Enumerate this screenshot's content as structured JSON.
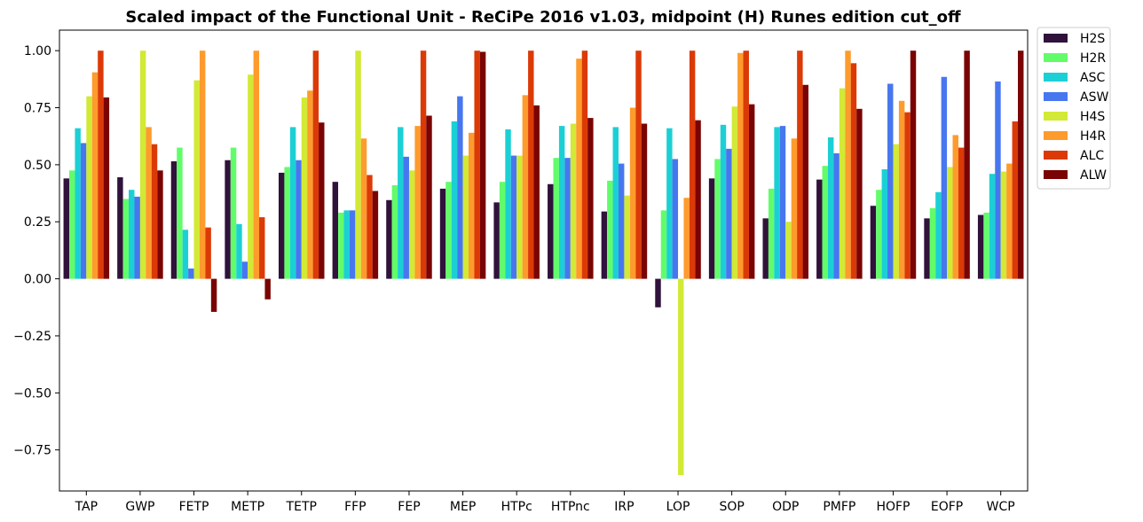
{
  "chart_data": {
    "type": "bar",
    "title": "Scaled impact of the Functional Unit - ReCiPe 2016 v1.03, midpoint (H) Runes edition cut_off",
    "xlabel": "",
    "ylabel": "",
    "ylim": [
      -0.93,
      1.09
    ],
    "yticks": [
      "1.00",
      "0.75",
      "0.50",
      "0.25",
      "0.00",
      "−0.25",
      "−0.50",
      "−0.75"
    ],
    "yticks_values": [
      1.0,
      0.75,
      0.5,
      0.25,
      0.0,
      -0.25,
      -0.5,
      -0.75
    ],
    "grid": false,
    "legend_position": "outside-top-right",
    "categories": [
      "TAP",
      "GWP",
      "FETP",
      "METP",
      "TETP",
      "FFP",
      "FEP",
      "MEP",
      "HTPc",
      "HTPnc",
      "IRP",
      "LOP",
      "SOP",
      "ODP",
      "PMFP",
      "HOFP",
      "EOFP",
      "WCP"
    ],
    "series": [
      {
        "name": "H2S",
        "color": "#30123b",
        "values": [
          0.44,
          0.445,
          0.515,
          0.52,
          0.465,
          0.425,
          0.345,
          0.395,
          0.335,
          0.415,
          0.295,
          -0.125,
          0.44,
          0.265,
          0.435,
          0.32,
          0.265,
          0.28
        ]
      },
      {
        "name": "H2R",
        "color": "#62fc6b",
        "values": [
          0.475,
          0.35,
          0.575,
          0.575,
          0.49,
          0.29,
          0.41,
          0.425,
          0.425,
          0.53,
          0.43,
          0.3,
          0.525,
          0.395,
          0.495,
          0.39,
          0.31,
          0.29
        ]
      },
      {
        "name": "ASC",
        "color": "#1bd0d5",
        "values": [
          0.66,
          0.39,
          0.215,
          0.24,
          0.665,
          0.3,
          0.665,
          0.69,
          0.655,
          0.67,
          0.665,
          0.66,
          0.675,
          0.665,
          0.62,
          0.48,
          0.38,
          0.46
        ]
      },
      {
        "name": "ASW",
        "color": "#4777ef",
        "values": [
          0.595,
          0.36,
          0.045,
          0.075,
          0.52,
          0.3,
          0.535,
          0.8,
          0.54,
          0.53,
          0.505,
          0.525,
          0.57,
          0.67,
          0.55,
          0.855,
          0.885,
          0.865
        ]
      },
      {
        "name": "H4S",
        "color": "#d2e935",
        "values": [
          0.8,
          1.0,
          0.87,
          0.895,
          0.795,
          1.0,
          0.475,
          0.54,
          0.54,
          0.68,
          0.365,
          -0.86,
          0.755,
          0.25,
          0.835,
          0.59,
          0.49,
          0.47
        ]
      },
      {
        "name": "H4R",
        "color": "#fe9b2d",
        "values": [
          0.905,
          0.665,
          1.0,
          1.0,
          0.825,
          0.615,
          0.67,
          0.64,
          0.805,
          0.965,
          0.75,
          0.355,
          0.99,
          0.615,
          1.0,
          0.78,
          0.63,
          0.505
        ]
      },
      {
        "name": "ALC",
        "color": "#db3a07",
        "values": [
          1.0,
          0.59,
          0.225,
          0.27,
          1.0,
          0.455,
          1.0,
          1.0,
          1.0,
          1.0,
          1.0,
          1.0,
          1.0,
          1.0,
          0.945,
          0.73,
          0.575,
          0.69
        ]
      },
      {
        "name": "ALW",
        "color": "#7a0403",
        "values": [
          0.795,
          0.475,
          -0.145,
          -0.09,
          0.685,
          0.385,
          0.715,
          0.995,
          0.76,
          0.705,
          0.68,
          0.695,
          0.765,
          0.85,
          0.745,
          1.0,
          1.0,
          1.0
        ]
      }
    ]
  }
}
